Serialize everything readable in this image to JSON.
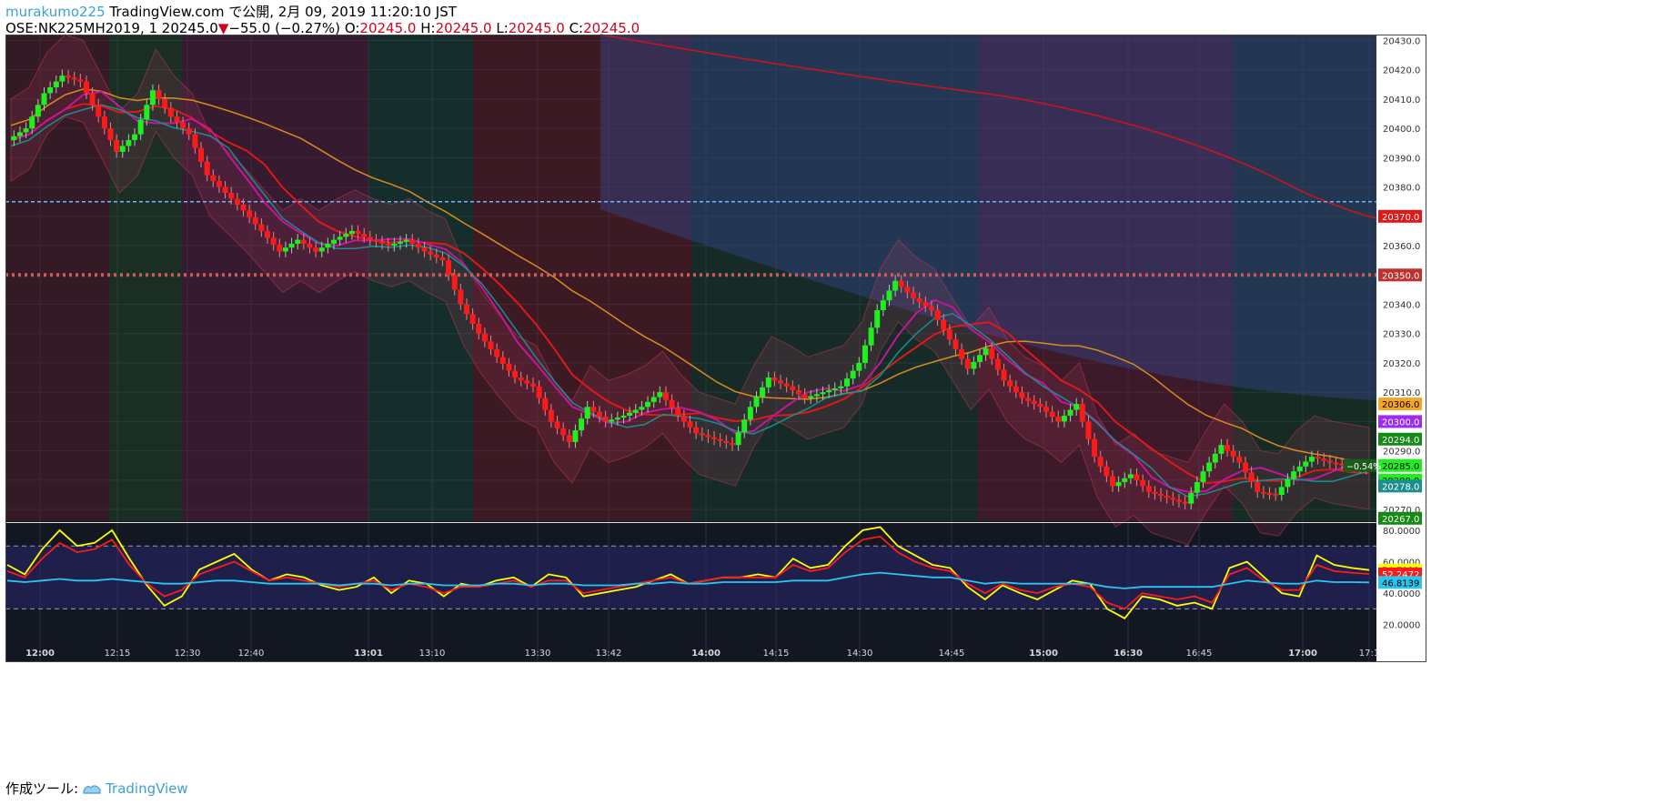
{
  "header": {
    "user": "murakumo225",
    "published": " TradingView.com で公開, 2月 09, 2019 11:20:10 JST",
    "symbol_line_prefix": "OSE:NK225MH2019, 1 20245.0",
    "change_arrow": "▼",
    "change": "−55.0 (−0.27%)",
    "o_label": " O:",
    "o_value": "20245.0",
    "h_label": " H:",
    "h_value": "20245.0",
    "l_label": " L:",
    "l_value": "20245.0",
    "c_label": " C:",
    "c_value": "20245.0"
  },
  "footer": {
    "label": "作成ツール:",
    "brand": "TradingView"
  },
  "colors": {
    "background_panel": "#131722",
    "up_candle": "#1ef01e",
    "down_candle": "#ff1a1a",
    "accent_blue": "#3c9fd6",
    "ma_orange": "#d98a1c",
    "ma_red": "#e01818",
    "ma_magenta": "#c2179b",
    "ma_green": "#18b818",
    "ma_teal": "#1a8f8f",
    "ma_gray": "#8a8a8a",
    "osc_yellow": "#ffff00",
    "osc_red": "#ff1a1a",
    "osc_cyan": "#29c7f0"
  },
  "chart_data": [
    {
      "type": "candlestick",
      "symbol": "OSE:NK225MH2019",
      "interval": "1",
      "ylim": [
        20266,
        20432
      ],
      "y_ticks": [
        20270.0,
        20280.0,
        20290.0,
        20300.0,
        20310.0,
        20320.0,
        20330.0,
        20340.0,
        20350.0,
        20360.0,
        20370.0,
        20380.0,
        20390.0,
        20400.0,
        20410.0,
        20420.0,
        20430.0
      ],
      "x_ticks": [
        {
          "label": "12:00",
          "bold": true
        },
        {
          "label": "12:15",
          "bold": false
        },
        {
          "label": "12:30",
          "bold": false
        },
        {
          "label": "12:40",
          "bold": false
        },
        {
          "label": "13:01",
          "bold": true
        },
        {
          "label": "13:10",
          "bold": false
        },
        {
          "label": "13:30",
          "bold": false
        },
        {
          "label": "13:42",
          "bold": false
        },
        {
          "label": "14:00",
          "bold": true
        },
        {
          "label": "14:15",
          "bold": false
        },
        {
          "label": "14:30",
          "bold": false
        },
        {
          "label": "14:45",
          "bold": false
        },
        {
          "label": "15:00",
          "bold": true
        },
        {
          "label": "16:30",
          "bold": true
        },
        {
          "label": "16:45",
          "bold": false
        },
        {
          "label": "17:00",
          "bold": true
        },
        {
          "label": "17:1",
          "bold": false
        }
      ],
      "price_path": [
        20396,
        20400,
        20412,
        20418,
        20416,
        20404,
        20392,
        20398,
        20413,
        20404,
        20398,
        20384,
        20378,
        20372,
        20365,
        20358,
        20362,
        20358,
        20362,
        20365,
        20362,
        20360,
        20362,
        20358,
        20355,
        20340,
        20330,
        20322,
        20315,
        20312,
        20300,
        20293,
        20305,
        20300,
        20302,
        20305,
        20310,
        20302,
        20296,
        20294,
        20292,
        20305,
        20315,
        20312,
        20308,
        20310,
        20312,
        20320,
        20338,
        20348,
        20342,
        20338,
        20328,
        20318,
        20325,
        20314,
        20308,
        20305,
        20300,
        20306,
        20288,
        20278,
        20282,
        20276,
        20274,
        20272,
        20283,
        20292,
        20286,
        20276,
        20275,
        20283,
        20288,
        20286,
        20285,
        20284
      ],
      "horizontal_lines": [
        {
          "value": 20375,
          "style": "dashed",
          "color": "#6fb6ff"
        },
        {
          "value": 20350,
          "style": "dotted",
          "color": "#c85a5a"
        }
      ],
      "price_labels": [
        {
          "value": 20370.0,
          "text": "20370.0",
          "color": "#e01818"
        },
        {
          "value": 20350.0,
          "text": "20350.0",
          "color": "#c03030"
        },
        {
          "value": 20306.0,
          "text": "20306.0",
          "color": "#f5a623"
        },
        {
          "value": 20300.0,
          "text": "20300.0",
          "color": "#9b2cf0"
        },
        {
          "value": 20294.0,
          "text": "20294.0",
          "color": "#158a15"
        },
        {
          "value": 20285.0,
          "text": "20285.0",
          "color": "#1ef01e"
        },
        {
          "value": 20280.0,
          "text": "20280.0",
          "color": "#1ef01e"
        },
        {
          "value": 20278.0,
          "text": "20278.0",
          "color": "#1a8f8f"
        },
        {
          "value": 20267.0,
          "text": "20267.0",
          "color": "#158a15"
        }
      ],
      "last_change_tag": "−0.54%"
    },
    {
      "type": "line",
      "panel": "oscillator",
      "ylim": [
        10,
        84
      ],
      "y_ticks": [
        20.0,
        40.0,
        60.0,
        80.0
      ],
      "levels": [
        30,
        70
      ],
      "series": [
        {
          "color": "#ffff00",
          "path": [
            58,
            52,
            68,
            80,
            70,
            72,
            80,
            62,
            45,
            32,
            38,
            55,
            60,
            65,
            55,
            48,
            52,
            50,
            45,
            42,
            44,
            50,
            40,
            48,
            46,
            38,
            46,
            44,
            48,
            50,
            44,
            52,
            50,
            38,
            40,
            42,
            44,
            48,
            52,
            46,
            48,
            50,
            50,
            52,
            50,
            62,
            56,
            58,
            70,
            80,
            82,
            70,
            64,
            58,
            56,
            44,
            36,
            45,
            40,
            36,
            42,
            48,
            46,
            30,
            24,
            38,
            36,
            32,
            34,
            30,
            56,
            60,
            50,
            40,
            38,
            64,
            58,
            56,
            54.7
          ]
        },
        {
          "color": "#ff1a1a",
          "path": [
            54,
            50,
            62,
            72,
            66,
            68,
            74,
            58,
            46,
            38,
            42,
            52,
            56,
            60,
            54,
            48,
            50,
            48,
            46,
            44,
            46,
            48,
            42,
            46,
            44,
            40,
            44,
            44,
            46,
            48,
            44,
            48,
            48,
            40,
            42,
            44,
            46,
            48,
            50,
            46,
            48,
            50,
            50,
            50,
            50,
            58,
            54,
            56,
            66,
            74,
            76,
            66,
            60,
            56,
            54,
            46,
            40,
            46,
            42,
            40,
            44,
            46,
            44,
            34,
            30,
            40,
            38,
            36,
            38,
            34,
            52,
            56,
            48,
            42,
            42,
            58,
            54,
            53,
            52.2
          ]
        },
        {
          "color": "#29c7f0",
          "path": [
            48,
            47,
            48,
            49,
            48,
            48,
            49,
            48,
            47,
            46,
            46,
            47,
            48,
            48,
            47,
            46,
            46,
            46,
            46,
            45,
            46,
            46,
            45,
            46,
            46,
            45,
            45,
            45,
            46,
            46,
            45,
            46,
            46,
            45,
            45,
            45,
            46,
            46,
            47,
            46,
            46,
            47,
            47,
            47,
            47,
            48,
            48,
            48,
            50,
            52,
            53,
            52,
            51,
            50,
            50,
            48,
            46,
            47,
            46,
            46,
            46,
            46,
            46,
            44,
            43,
            44,
            44,
            44,
            44,
            44,
            46,
            48,
            47,
            46,
            46,
            48,
            47,
            47,
            46.8
          ]
        }
      ],
      "last_values": [
        {
          "text": "54.7132",
          "color": "#ffff00",
          "value": 54.7132
        },
        {
          "text": "52.2472",
          "color": "#ff1a1a",
          "value": 52.2472
        },
        {
          "text": "46.8139",
          "color": "#29c7f0",
          "value": 46.8139
        }
      ]
    }
  ]
}
